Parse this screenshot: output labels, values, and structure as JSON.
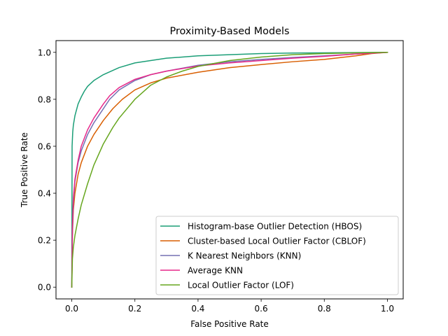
{
  "chart_data": {
    "type": "line",
    "title": "Proximity-Based Models",
    "xlabel": "False Positive Rate",
    "ylabel": "True Positive Rate",
    "xlim": [
      -0.05,
      1.05
    ],
    "ylim": [
      -0.05,
      1.05
    ],
    "xticks": [
      "0.0",
      "0.2",
      "0.4",
      "0.6",
      "0.8",
      "1.0"
    ],
    "yticks": [
      "0.0",
      "0.2",
      "0.4",
      "0.6",
      "0.8",
      "1.0"
    ],
    "grid": false,
    "legend_position": "lower-right",
    "series": [
      {
        "name": "Histogram-base Outlier Detection (HBOS)",
        "color": "#1b9e77",
        "x": [
          0,
          0.001,
          0.003,
          0.005,
          0.01,
          0.02,
          0.03,
          0.04,
          0.05,
          0.07,
          0.1,
          0.15,
          0.2,
          0.3,
          0.4,
          0.5,
          0.6,
          0.7,
          0.8,
          0.9,
          1.0
        ],
        "y": [
          0,
          0.6,
          0.66,
          0.69,
          0.73,
          0.78,
          0.81,
          0.835,
          0.855,
          0.88,
          0.905,
          0.935,
          0.955,
          0.975,
          0.985,
          0.99,
          0.995,
          0.997,
          0.998,
          0.999,
          1.0
        ]
      },
      {
        "name": "Cluster-based Local Outlier Factor (CBLOF)",
        "color": "#d95f02",
        "x": [
          0,
          0.002,
          0.005,
          0.01,
          0.02,
          0.03,
          0.05,
          0.07,
          0.1,
          0.13,
          0.16,
          0.2,
          0.25,
          0.3,
          0.4,
          0.5,
          0.6,
          0.7,
          0.8,
          0.9,
          0.95,
          1.0
        ],
        "y": [
          0,
          0.22,
          0.33,
          0.4,
          0.48,
          0.53,
          0.6,
          0.65,
          0.71,
          0.76,
          0.8,
          0.84,
          0.87,
          0.89,
          0.915,
          0.935,
          0.948,
          0.96,
          0.97,
          0.985,
          0.995,
          1.0
        ]
      },
      {
        "name": "K Nearest Neighbors (KNN)",
        "color": "#7570b3",
        "x": [
          0,
          0.002,
          0.005,
          0.01,
          0.02,
          0.03,
          0.05,
          0.07,
          0.1,
          0.12,
          0.15,
          0.2,
          0.25,
          0.3,
          0.4,
          0.5,
          0.6,
          0.7,
          0.8,
          0.9,
          1.0
        ],
        "y": [
          0,
          0.24,
          0.36,
          0.45,
          0.53,
          0.58,
          0.65,
          0.7,
          0.76,
          0.8,
          0.84,
          0.88,
          0.905,
          0.92,
          0.945,
          0.96,
          0.97,
          0.978,
          0.985,
          0.993,
          1.0
        ]
      },
      {
        "name": "Average KNN",
        "color": "#e7298a",
        "x": [
          0,
          0.002,
          0.005,
          0.01,
          0.02,
          0.03,
          0.05,
          0.07,
          0.1,
          0.12,
          0.15,
          0.2,
          0.25,
          0.3,
          0.4,
          0.5,
          0.6,
          0.7,
          0.8,
          0.9,
          1.0
        ],
        "y": [
          0,
          0.26,
          0.38,
          0.46,
          0.54,
          0.6,
          0.67,
          0.72,
          0.78,
          0.815,
          0.85,
          0.885,
          0.905,
          0.92,
          0.942,
          0.955,
          0.965,
          0.975,
          0.983,
          0.993,
          1.0
        ]
      },
      {
        "name": "Local Outlier Factor (LOF)",
        "color": "#66a61e",
        "x": [
          0,
          0.002,
          0.005,
          0.01,
          0.02,
          0.03,
          0.05,
          0.07,
          0.1,
          0.13,
          0.15,
          0.2,
          0.25,
          0.3,
          0.35,
          0.4,
          0.5,
          0.6,
          0.7,
          0.8,
          0.9,
          1.0
        ],
        "y": [
          0,
          0.12,
          0.17,
          0.22,
          0.29,
          0.35,
          0.44,
          0.52,
          0.61,
          0.68,
          0.72,
          0.8,
          0.86,
          0.895,
          0.92,
          0.94,
          0.965,
          0.98,
          0.99,
          0.995,
          0.998,
          1.0
        ]
      }
    ]
  }
}
